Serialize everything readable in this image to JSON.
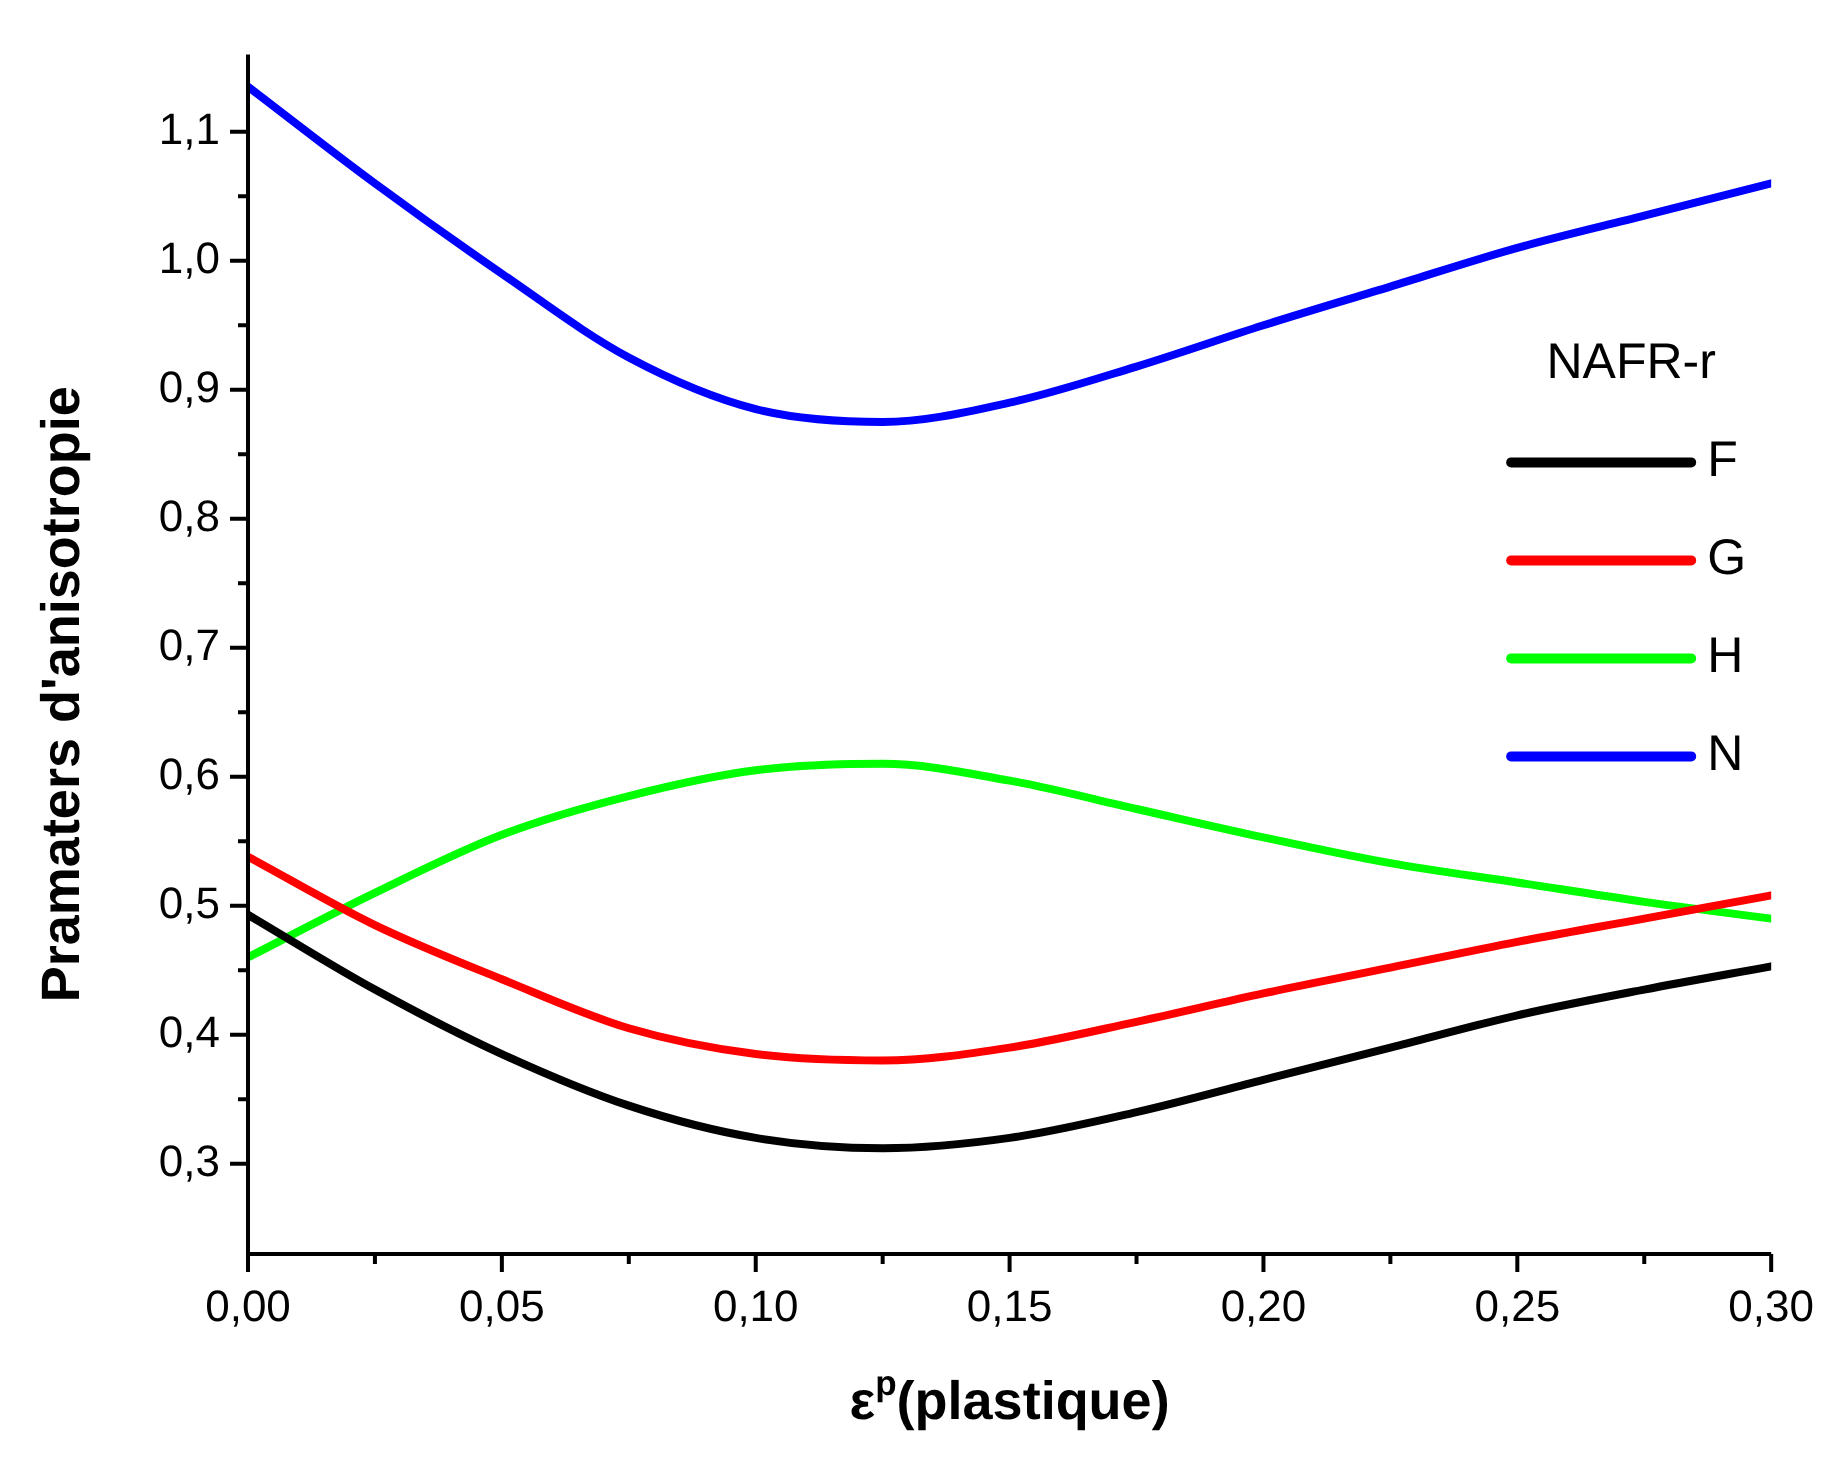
{
  "chart_data": {
    "type": "line",
    "xlabel": "ε$^{p}$(plastique)",
    "ylabel": "Pramaters d'anisotropie",
    "legend_title": "NAFR-r",
    "legend": "right",
    "grid": false,
    "marker": "none",
    "line_style": "solid",
    "x": [
      0,
      0.025,
      0.05,
      0.075,
      0.1,
      0.125,
      0.15,
      0.175,
      0.2,
      0.225,
      0.25,
      0.275,
      0.3
    ],
    "xlim": [
      0,
      0.3
    ],
    "xticks": [
      {
        "value": 0,
        "label": "0,00"
      },
      {
        "value": 0.05,
        "label": "0,05"
      },
      {
        "value": 0.1,
        "label": "0,10"
      },
      {
        "value": 0.15,
        "label": "0,15"
      },
      {
        "value": 0.2,
        "label": "0,20"
      },
      {
        "value": 0.25,
        "label": "0,25"
      },
      {
        "value": 0.3,
        "label": "0,30"
      }
    ],
    "ylim": [
      0.23,
      1.16
    ],
    "yticks": [
      {
        "value": 0.3,
        "label": "0,3"
      },
      {
        "value": 0.4,
        "label": "0,4"
      },
      {
        "value": 0.5,
        "label": "0,5"
      },
      {
        "value": 0.6,
        "label": "0,6"
      },
      {
        "value": 0.7,
        "label": "0,7"
      },
      {
        "value": 0.8,
        "label": "0,8"
      },
      {
        "value": 0.9,
        "label": "0,9"
      },
      {
        "value": 1.0,
        "label": "1,0"
      },
      {
        "value": 1.1,
        "label": "1,1"
      }
    ],
    "series": [
      {
        "name": "F",
        "color": "#000000",
        "values": [
          0.493,
          0.435,
          0.385,
          0.345,
          0.32,
          0.312,
          0.32,
          0.34,
          0.365,
          0.39,
          0.415,
          0.435,
          0.453
        ]
      },
      {
        "name": "G",
        "color": "#ff0000",
        "values": [
          0.538,
          0.485,
          0.443,
          0.405,
          0.385,
          0.38,
          0.39,
          0.41,
          0.432,
          0.452,
          0.472,
          0.49,
          0.508
        ]
      },
      {
        "name": "H",
        "color": "#00ff00",
        "values": [
          0.46,
          0.51,
          0.555,
          0.585,
          0.605,
          0.61,
          0.597,
          0.575,
          0.553,
          0.533,
          0.518,
          0.503,
          0.49
        ]
      },
      {
        "name": "N",
        "color": "#0000ff",
        "values": [
          1.135,
          1.06,
          0.99,
          0.925,
          0.885,
          0.875,
          0.89,
          0.918,
          0.95,
          0.98,
          1.01,
          1.035,
          1.06
        ]
      }
    ]
  }
}
